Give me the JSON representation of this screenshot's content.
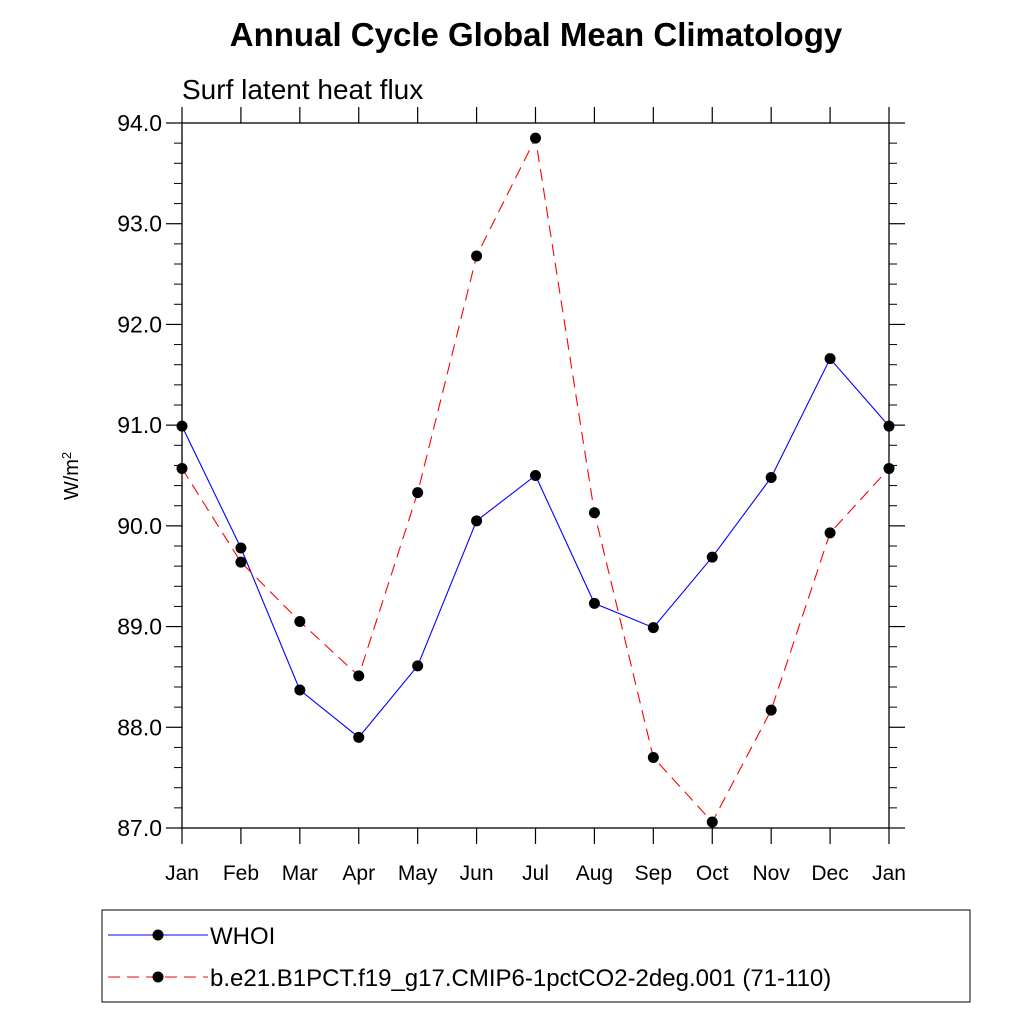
{
  "chart_data": {
    "type": "line",
    "title": "Annual Cycle Global Mean Climatology",
    "subtitle": "Surf latent heat flux",
    "xlabel": "",
    "ylabel_base": "W/m",
    "ylabel_sup": "2",
    "ylim": [
      87.0,
      94.0
    ],
    "yticks": [
      "87.0",
      "88.0",
      "89.0",
      "90.0",
      "91.0",
      "92.0",
      "93.0",
      "94.0"
    ],
    "categories": [
      "Jan",
      "Feb",
      "Mar",
      "Apr",
      "May",
      "Jun",
      "Jul",
      "Aug",
      "Sep",
      "Oct",
      "Nov",
      "Dec",
      "Jan"
    ],
    "grid": false,
    "legend_position": "bottom",
    "series": [
      {
        "name": "WHOI",
        "color": "#0000ff",
        "dashed": false,
        "values": [
          90.99,
          89.78,
          88.37,
          87.9,
          88.61,
          90.05,
          90.5,
          89.23,
          88.99,
          89.69,
          90.48,
          91.66,
          90.99
        ]
      },
      {
        "name": "b.e21.B1PCT.f19_g17.CMIP6-1pctCO2-2deg.001 (71-110)",
        "color": "#ff0000",
        "dashed": true,
        "values": [
          90.57,
          89.64,
          89.05,
          88.51,
          90.33,
          92.68,
          93.85,
          90.13,
          87.7,
          87.06,
          88.17,
          89.93,
          90.57
        ]
      }
    ]
  }
}
